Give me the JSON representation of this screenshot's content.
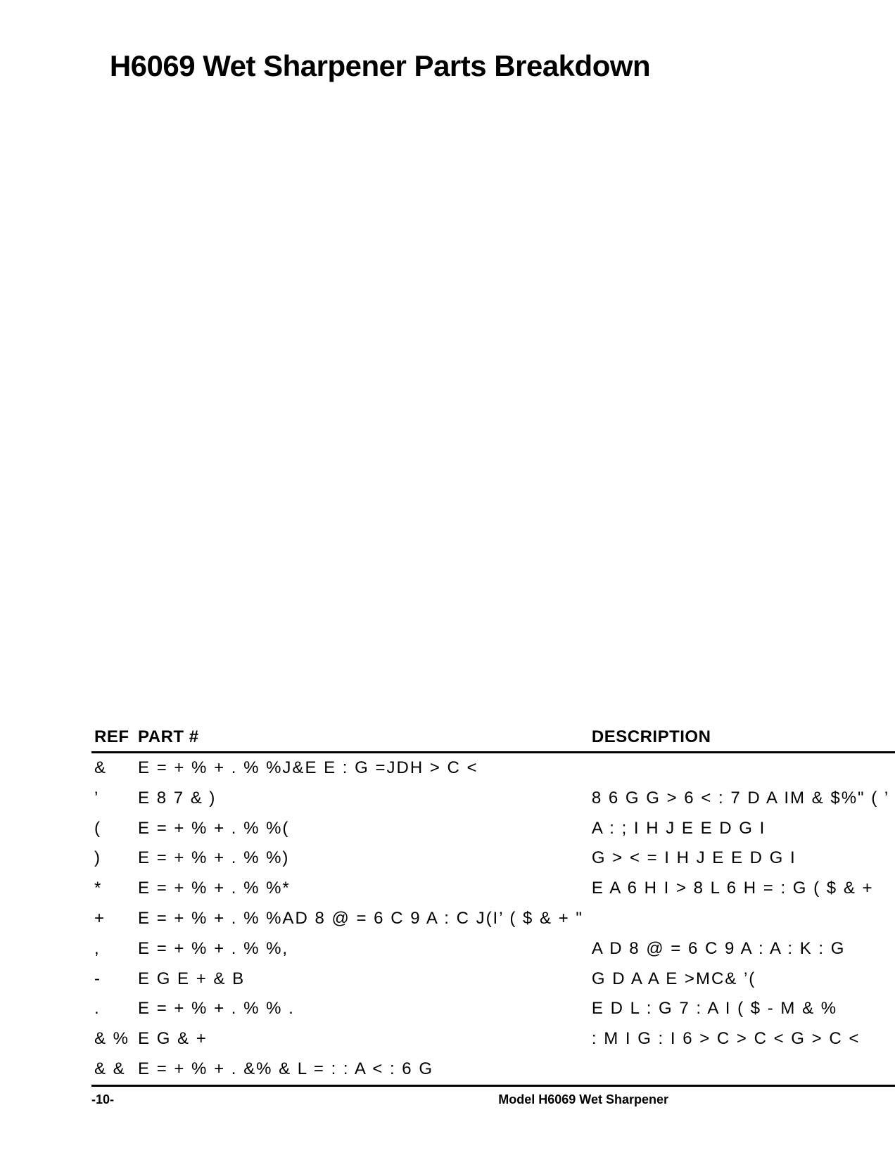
{
  "title": "H6069 Wet Sharpener Parts Breakdown",
  "table": {
    "headers": {
      "ref": "REF",
      "part": "PART #",
      "desc": "DESCRIPTION"
    },
    "rows": [
      {
        "ref": "&",
        "part": "E = + % + . % %J&E E : G  =JDH > C <",
        "desc": ""
      },
      {
        "ref": "’",
        "part": "E 8 7 & )",
        "desc": "8 6 G G > 6 < :  7 D A IM  & $%\" ( ’"
      },
      {
        "ref": "(",
        "part": "E = + % + . % %(",
        "desc": "A : ; I  H J E E D G I"
      },
      {
        "ref": ")",
        "part": "E = + % + . % %)",
        "desc": "G > < = I  H J E E D G I"
      },
      {
        "ref": "*",
        "part": "E = + % + . % %*",
        "desc": "E A 6 H I > 8  L 6 H = : G  ( $ & +"
      },
      {
        "ref": "+",
        "part": "E = + % + . % %AD 8 @  = 6 C 9 A :  C J(I’ ( $ & + \"",
        "desc": ""
      },
      {
        "ref": ",",
        "part": "E = + % + . % %,",
        "desc": "A D 8 @  = 6 C 9 A :  A : K : G"
      },
      {
        "ref": "-",
        "part": "E G E + & B",
        "desc": "G D A A  E >MC& ’("
      },
      {
        "ref": ".",
        "part": "E = + % + . % % .",
        "desc": "E D L : G  7 : A I  ( $ -   M  & %"
      },
      {
        "ref": "& %",
        "part": "E G & +",
        "desc": ": M I  G : I 6 > C > C <  G > C <"
      },
      {
        "ref": "& &",
        "part": "E = + % + . &% &  L = : : A  < : 6 G",
        "desc": ""
      }
    ]
  },
  "footer": {
    "left": "-10-",
    "right": "Model H6069 Wet Sharpener"
  },
  "colors": {
    "text": "#000000",
    "background": "#ffffff",
    "border": "#000000"
  },
  "typography": {
    "title_fontsize": 42,
    "header_fontsize": 24,
    "cell_fontsize": 24,
    "footer_fontsize": 18
  }
}
